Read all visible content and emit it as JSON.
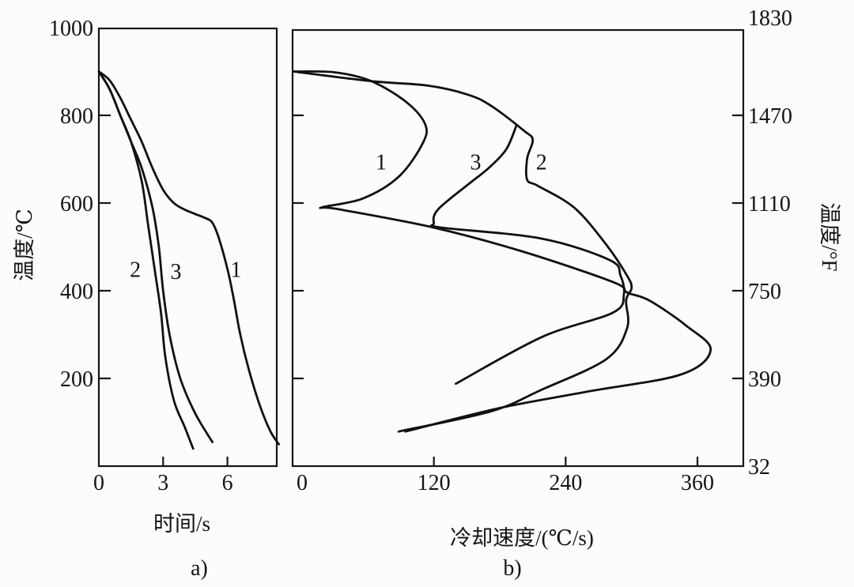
{
  "chart_data": [
    {
      "id": "a",
      "type": "line",
      "caption": "a)",
      "xlabel": "时间/s",
      "ylabel": "温度/℃",
      "xlim": [
        0,
        8.3
      ],
      "ylim": [
        0,
        1000
      ],
      "x_ticks": [
        "0",
        "3",
        "6"
      ],
      "x_tick_values": [
        0,
        3,
        6
      ],
      "y_ticks": [
        "1000",
        "800",
        "600",
        "400",
        "200"
      ],
      "y_tick_values": [
        1000,
        800,
        600,
        400,
        200
      ],
      "series": [
        {
          "name": "1",
          "x": [
            0,
            0.5,
            1,
            1.5,
            2,
            2.5,
            3,
            3.5,
            4,
            4.5,
            5,
            5.3,
            5.6,
            6,
            6.3,
            6.6,
            7,
            7.5,
            8,
            8.4
          ],
          "y": [
            900,
            880,
            840,
            790,
            740,
            680,
            630,
            600,
            585,
            575,
            565,
            555,
            520,
            450,
            380,
            300,
            220,
            140,
            80,
            50
          ]
        },
        {
          "name": "2",
          "x": [
            0,
            0.5,
            1,
            1.5,
            2,
            2.3,
            2.6,
            2.9,
            3.1,
            3.5,
            4,
            4.4
          ],
          "y": [
            900,
            860,
            800,
            740,
            650,
            550,
            450,
            350,
            250,
            150,
            90,
            40
          ]
        },
        {
          "name": "3",
          "x": [
            0,
            0.5,
            1,
            1.5,
            2,
            2.5,
            2.8,
            3,
            3.3,
            3.8,
            4.5,
            5.3
          ],
          "y": [
            900,
            860,
            800,
            740,
            680,
            590,
            500,
            400,
            300,
            200,
            120,
            55
          ]
        }
      ],
      "annotations": [
        {
          "text": "2",
          "x": 1.7,
          "y": 450
        },
        {
          "text": "3",
          "x": 3.6,
          "y": 445
        },
        {
          "text": "1",
          "x": 6.4,
          "y": 450
        }
      ]
    },
    {
      "id": "b",
      "type": "line",
      "caption": "b)",
      "xlabel": "冷却速度/(℃/s)",
      "ylabel_right": "温度/°F",
      "xlim": [
        -8,
        400
      ],
      "ylim_celsius": [
        0,
        1000
      ],
      "x_ticks": [
        "0",
        "120",
        "240",
        "360"
      ],
      "x_tick_values": [
        0,
        120,
        240,
        360
      ],
      "y_ticks_right": [
        "1830",
        "1470",
        "1110",
        "750",
        "390",
        "32"
      ],
      "y_tick_values_celsius": [
        1000,
        800,
        600,
        400,
        200,
        0
      ],
      "series": [
        {
          "name": "1",
          "x": [
            -8,
            30,
            63,
            95,
            112,
            110,
            88,
            55,
            18,
            33,
            120,
            200,
            283,
            296,
            316,
            350,
            372,
            345,
            260,
            179,
            94
          ],
          "y": [
            900,
            898,
            878,
            830,
            780,
            737,
            660,
            610,
            590,
            586,
            544,
            490,
            420,
            396,
            378,
            320,
            265,
            209,
            170,
            132,
            79
          ]
        },
        {
          "name": "2",
          "x": [
            -8,
            63,
            114,
            150,
            172,
            202,
            210,
            205,
            205,
            215,
            248,
            277,
            296,
            300,
            295,
            296,
            277,
            218,
            172,
            88
          ],
          "y": [
            900,
            878,
            868,
            848,
            822,
            765,
            744,
            702,
            653,
            639,
            589,
            505,
            434,
            406,
            378,
            315,
            244,
            174,
            125,
            79
          ]
        },
        {
          "name": "3",
          "x": [
            195,
            186,
            170,
            153,
            124,
            120,
            127,
            218,
            280,
            290,
            293,
            283,
            218,
            140
          ],
          "y": [
            776,
            723,
            680,
            646,
            586,
            554,
            544,
            519,
            470,
            434,
            392,
            350,
            294,
            188
          ]
        }
      ],
      "annotations": [
        {
          "text": "1",
          "x": 72,
          "y": 695
        },
        {
          "text": "3",
          "x": 158,
          "y": 695
        },
        {
          "text": "2",
          "x": 218,
          "y": 695
        }
      ]
    }
  ]
}
